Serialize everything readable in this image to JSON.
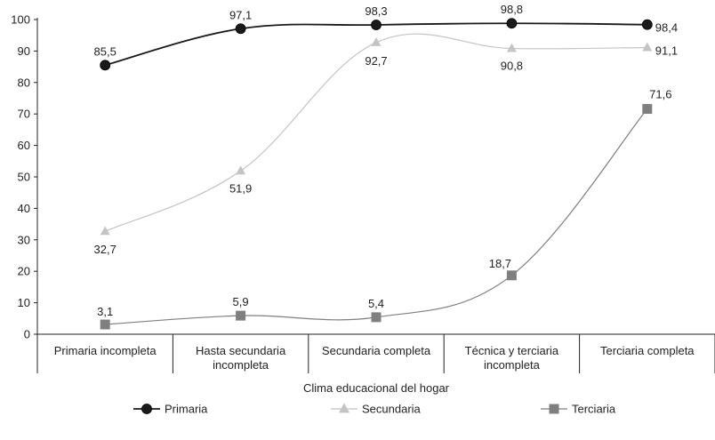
{
  "chart_data": {
    "type": "line",
    "categories": [
      [
        "Primaria incompleta"
      ],
      [
        "Hasta secundaria",
        "incompleta"
      ],
      [
        "Secundaria completa"
      ],
      [
        "Técnica y terciaria",
        "incompleta"
      ],
      [
        "Terciaria completa"
      ]
    ],
    "xlabel": "Clima educacional del hogar",
    "ylabel": "",
    "ylim": [
      0,
      100
    ],
    "yticks": [
      0,
      10,
      20,
      30,
      40,
      50,
      60,
      70,
      80,
      90,
      100
    ],
    "series": [
      {
        "name": "Primaria",
        "marker": "circle",
        "color": "#1a1a1a",
        "values": [
          85.5,
          97.1,
          98.3,
          98.8,
          98.4
        ],
        "labels": [
          "85,5",
          "97,1",
          "98,3",
          "98,8",
          "98,4"
        ]
      },
      {
        "name": "Secundaria",
        "marker": "triangle",
        "color": "#c4c4c4",
        "values": [
          32.7,
          51.9,
          92.7,
          90.8,
          91.1
        ],
        "labels": [
          "32,7",
          "51,9",
          "92,7",
          "90,8",
          "91,1"
        ]
      },
      {
        "name": "Terciaria",
        "marker": "square",
        "color": "#7f7f7f",
        "values": [
          3.1,
          5.9,
          5.4,
          18.7,
          71.6
        ],
        "labels": [
          "3,1",
          "5,9",
          "5,4",
          "18,7",
          "71,6"
        ]
      }
    ],
    "legend_position": "bottom",
    "grid": false
  }
}
